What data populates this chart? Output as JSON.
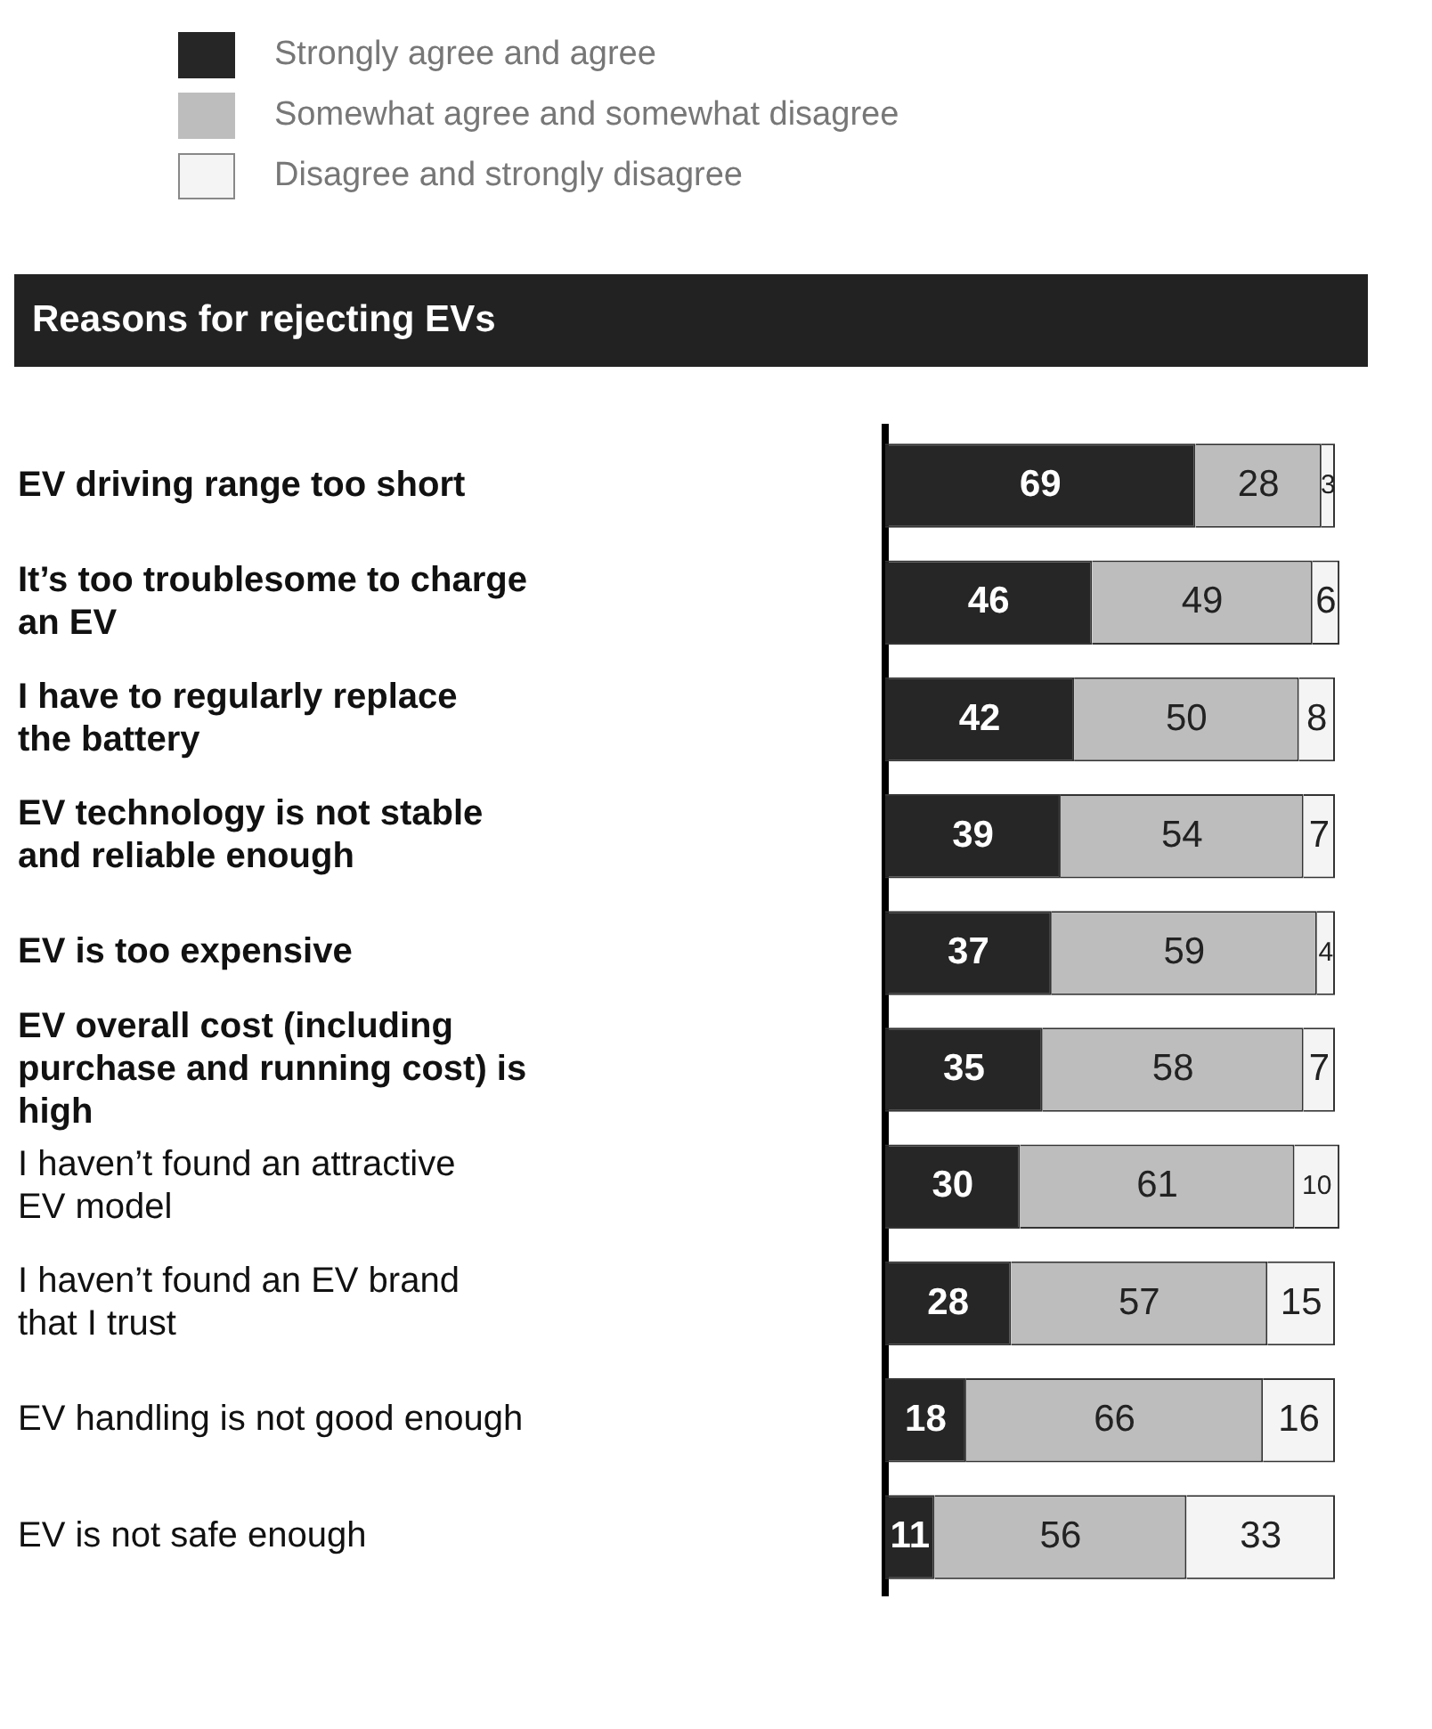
{
  "chart_data": {
    "type": "bar",
    "orientation": "horizontal",
    "stacked": true,
    "title": "Reasons for rejecting EVs",
    "categories": [
      "EV driving range too short",
      "It’s too troublesome to charge an EV",
      "I have to regularly replace the battery",
      "EV technology is not stable and reliable enough",
      "EV is too expensive",
      "EV overall cost (including purchase and running cost) is high",
      "I haven’t found an attractive EV model",
      "I haven’t found an EV brand that I trust",
      "EV handling is not good enough",
      "EV is not safe enough"
    ],
    "series": [
      {
        "name": "Strongly agree and agree",
        "color": "#262626",
        "values": [
          69,
          46,
          42,
          39,
          37,
          35,
          30,
          28,
          18,
          11
        ]
      },
      {
        "name": "Somewhat agree and somewhat disagree",
        "color": "#bdbdbd",
        "values": [
          28,
          49,
          50,
          54,
          59,
          58,
          61,
          57,
          66,
          56
        ]
      },
      {
        "name": "Disagree and strongly disagree",
        "color": "#f4f4f4",
        "values": [
          3,
          6,
          8,
          7,
          4,
          7,
          10,
          15,
          16,
          33
        ]
      }
    ],
    "data_labels": true,
    "legend": "top left"
  }
}
